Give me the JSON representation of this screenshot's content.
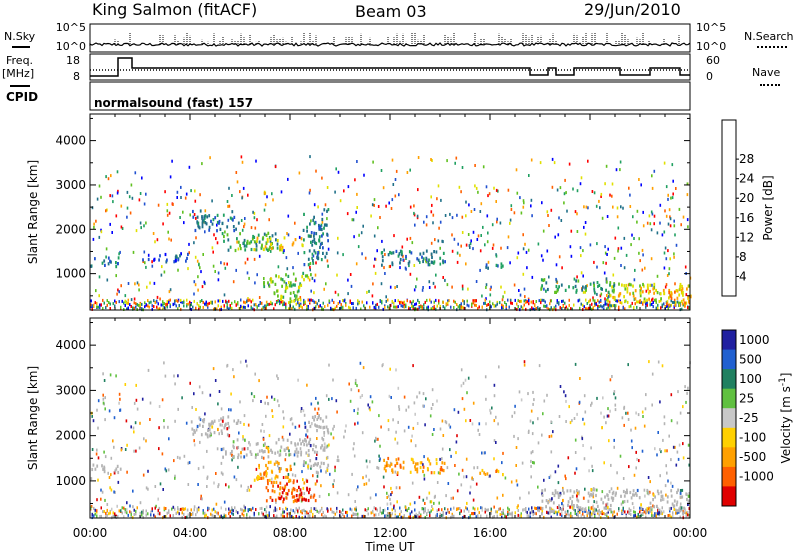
{
  "header": {
    "station": "King Salmon (fitACF)",
    "beam": "Beam 03",
    "date": "29/Jun/2010"
  },
  "strip": {
    "nsky_label": "N.Sky",
    "nsearch_label": "N.Search",
    "nsky_ticks": [
      "10^5",
      "10^0"
    ],
    "freq_label": "Freq.",
    "freq_unit": "[MHz]",
    "freq_ticks": [
      "18",
      "8"
    ],
    "nave_label": "Nave",
    "nave_ticks": [
      "60",
      "0"
    ],
    "cpid_label": "CPID",
    "program": "normalsound (fast) 157"
  },
  "colors": {
    "ground_scatter": "#b4b4b4",
    "power_scale": [
      "#0000ff",
      "#2050d0",
      "#207088",
      "#20a060",
      "#60c020",
      "#e0e000",
      "#ffa000",
      "#ff6000",
      "#ff0000"
    ],
    "velocity_scale": [
      "#2020a0",
      "#2060d0",
      "#208060",
      "#60c040",
      "#c8c8c8",
      "#ffd000",
      "#ffa000",
      "#ff6000",
      "#e00000"
    ]
  },
  "chart_data": [
    {
      "type": "heatmap",
      "title": "Power",
      "xlabel": "",
      "ylabel": "Slant Range [km]",
      "x_ticks": [
        "00:00",
        "04:00",
        "08:00",
        "12:00",
        "16:00",
        "20:00",
        "00:00"
      ],
      "xlim_hours": [
        0,
        24
      ],
      "ylim": [
        180,
        4600
      ],
      "y_ticks": [
        1000,
        2000,
        3000,
        4000
      ],
      "colorbar": {
        "label": "Power [dB]",
        "ticks": [
          4,
          8,
          12,
          16,
          20,
          24,
          28
        ],
        "range": [
          0,
          32
        ]
      },
      "echo_regions": [
        {
          "t": [
            0.0,
            1.2
          ],
          "r": [
            1180,
            1400
          ],
          "level": 6
        },
        {
          "t": [
            2.0,
            4.0
          ],
          "r": [
            1300,
            1500
          ],
          "level": 5
        },
        {
          "t": [
            4.0,
            6.0
          ],
          "r": [
            2000,
            2450
          ],
          "level": 6
        },
        {
          "t": [
            5.2,
            7.5
          ],
          "r": [
            1550,
            1950
          ],
          "level": 12
        },
        {
          "t": [
            6.5,
            8.5
          ],
          "r": [
            1550,
            1850
          ],
          "level": 18
        },
        {
          "t": [
            6.8,
            8.8
          ],
          "r": [
            700,
            1050
          ],
          "level": 17
        },
        {
          "t": [
            7.2,
            8.4
          ],
          "r": [
            400,
            700
          ],
          "level": 16
        },
        {
          "t": [
            8.5,
            9.5
          ],
          "r": [
            1200,
            2500
          ],
          "level": 8
        },
        {
          "t": [
            11.5,
            14.2
          ],
          "r": [
            1200,
            1550
          ],
          "level": 9
        },
        {
          "t": [
            15.5,
            16.5
          ],
          "r": [
            1150,
            1300
          ],
          "level": 6
        },
        {
          "t": [
            18.0,
            21.0
          ],
          "r": [
            600,
            900
          ],
          "level": 10
        },
        {
          "t": [
            20.5,
            24.0
          ],
          "r": [
            400,
            800
          ],
          "level": 18
        },
        {
          "t": [
            23.0,
            24.0
          ],
          "r": [
            300,
            700
          ],
          "level": 24
        }
      ]
    },
    {
      "type": "heatmap",
      "title": "Velocity",
      "xlabel": "Time UT",
      "ylabel": "Slant Range [km]",
      "x_ticks": [
        "00:00",
        "04:00",
        "08:00",
        "12:00",
        "16:00",
        "20:00",
        "00:00"
      ],
      "xlim_hours": [
        0,
        24
      ],
      "ylim": [
        180,
        4600
      ],
      "y_ticks": [
        1000,
        2000,
        3000,
        4000
      ],
      "colorbar": {
        "label": "Velocity [m s",
        "label_exponent": "-1",
        "label_close": "]",
        "ticks": [
          "1000",
          "500",
          "100",
          "25",
          "-25",
          "-100",
          "-500",
          "-1000"
        ]
      },
      "echo_regions": [
        {
          "t": [
            0.0,
            1.2
          ],
          "r": [
            1180,
            1400
          ],
          "level": "ground"
        },
        {
          "t": [
            4.0,
            6.0
          ],
          "r": [
            2000,
            2450
          ],
          "level": "ground"
        },
        {
          "t": [
            5.2,
            8.8
          ],
          "r": [
            1550,
            1950
          ],
          "level": "ground"
        },
        {
          "t": [
            6.5,
            8.0
          ],
          "r": [
            1000,
            1450
          ],
          "level": -100
        },
        {
          "t": [
            7.0,
            9.0
          ],
          "r": [
            550,
            1050
          ],
          "level": -500
        },
        {
          "t": [
            7.5,
            8.8
          ],
          "r": [
            600,
            900
          ],
          "level": -1000
        },
        {
          "t": [
            8.5,
            9.5
          ],
          "r": [
            1200,
            2500
          ],
          "level": "ground"
        },
        {
          "t": [
            11.5,
            14.2
          ],
          "r": [
            1200,
            1550
          ],
          "level": -100
        },
        {
          "t": [
            15.5,
            16.5
          ],
          "r": [
            1150,
            1300
          ],
          "level": -100
        },
        {
          "t": [
            18.0,
            24.0
          ],
          "r": [
            300,
            850
          ],
          "level": "ground"
        }
      ]
    }
  ]
}
